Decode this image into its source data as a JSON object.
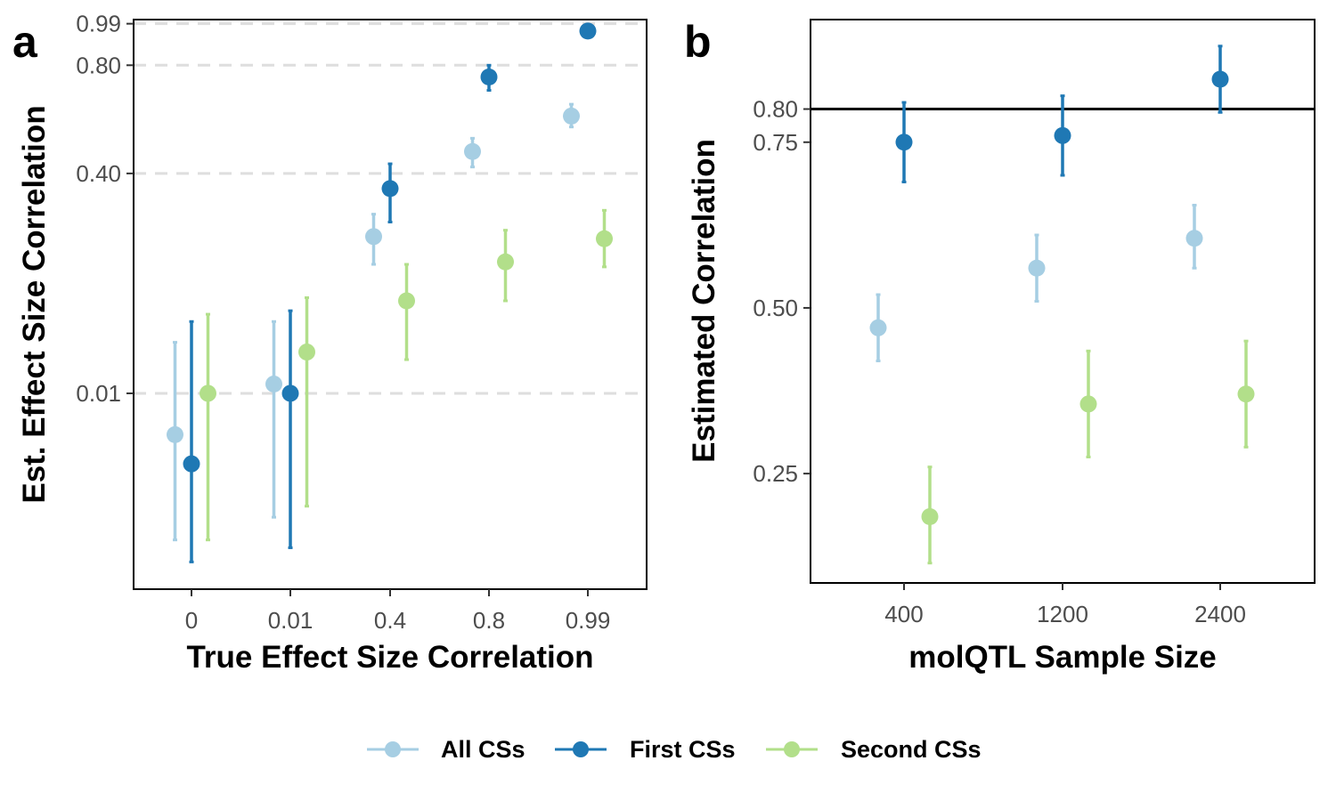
{
  "legend": {
    "items": [
      {
        "label": "All CSs",
        "color": "#a6cee3"
      },
      {
        "label": "First CSs",
        "color": "#1f78b4"
      },
      {
        "label": "Second CSs",
        "color": "#b2df8a"
      }
    ]
  },
  "chart_data": [
    {
      "panel": "a",
      "type": "scatter",
      "title": "",
      "xlabel": "True Effect Size Correlation",
      "ylabel": "Est. Effect Size Correlation",
      "categories": [
        "0",
        "0.01",
        "0.4",
        "0.8",
        "0.99"
      ],
      "yticks": [
        0.01,
        0.4,
        0.8,
        0.99
      ],
      "ytick_labels": [
        "0.01",
        "0.40",
        "0.80",
        "0.99"
      ],
      "ylim": [
        -0.14,
        1.01
      ],
      "grid": "dashed horizontal at y ticks",
      "series": [
        {
          "name": "All CSs",
          "color": "#a6cee3",
          "values": [
            0.0,
            0.015,
            0.23,
            0.47,
            0.595
          ],
          "lower": [
            -0.065,
            -0.04,
            0.17,
            0.42,
            0.555
          ],
          "upper": [
            0.05,
            0.075,
            0.285,
            0.515,
            0.64
          ]
        },
        {
          "name": "First CSs",
          "color": "#1f78b4",
          "values": [
            -0.005,
            0.01,
            0.355,
            0.75,
            0.955
          ],
          "lower": [
            -0.095,
            -0.075,
            0.265,
            0.695,
            0.93
          ],
          "upper": [
            0.075,
            0.09,
            0.43,
            0.8,
            0.98
          ]
        },
        {
          "name": "Second CSs",
          "color": "#b2df8a",
          "values": [
            0.01,
            0.04,
            0.105,
            0.175,
            0.225
          ],
          "lower": [
            -0.065,
            -0.03,
            0.033,
            0.105,
            0.165
          ],
          "upper": [
            0.085,
            0.11,
            0.17,
            0.245,
            0.295
          ]
        }
      ]
    },
    {
      "panel": "b",
      "type": "scatter",
      "title": "",
      "xlabel": "molQTL Sample Size",
      "ylabel": "Estimated Correlation",
      "categories": [
        "400",
        "1200",
        "2400"
      ],
      "yticks": [
        0.25,
        0.5,
        0.75,
        0.8
      ],
      "ytick_labels": [
        "0.25",
        "0.50",
        "0.75",
        "0.80"
      ],
      "ylim": [
        0.085,
        0.935
      ],
      "reference_line": 0.8,
      "series": [
        {
          "name": "All CSs",
          "color": "#a6cee3",
          "values": [
            0.47,
            0.56,
            0.605
          ],
          "lower": [
            0.42,
            0.51,
            0.56
          ],
          "upper": [
            0.52,
            0.61,
            0.655
          ]
        },
        {
          "name": "First CSs",
          "color": "#1f78b4",
          "values": [
            0.75,
            0.76,
            0.845
          ],
          "lower": [
            0.69,
            0.7,
            0.795
          ],
          "upper": [
            0.81,
            0.82,
            0.895
          ]
        },
        {
          "name": "Second CSs",
          "color": "#b2df8a",
          "values": [
            0.185,
            0.355,
            0.37
          ],
          "lower": [
            0.115,
            0.275,
            0.29
          ],
          "upper": [
            0.26,
            0.435,
            0.45
          ]
        }
      ]
    }
  ]
}
